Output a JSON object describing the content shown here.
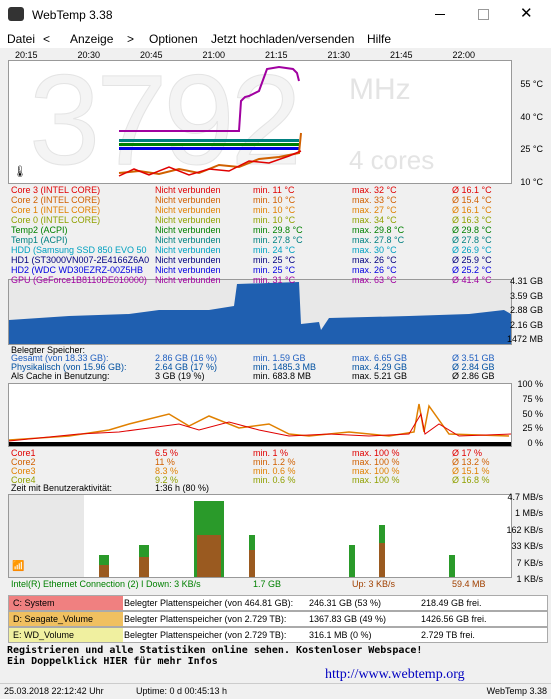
{
  "window": {
    "title": "WebTemp 3.38",
    "menu": [
      "Datei",
      "<",
      "Anzeige",
      ">",
      "Optionen",
      "Jetzt hochladen/versenden",
      "Hilfe"
    ],
    "time_axis": [
      "20:15",
      "20:30",
      "20:45",
      "21:00",
      "21:15",
      "21:30",
      "21:45",
      "22:00"
    ]
  },
  "temperature": {
    "big_value": "3792",
    "unit": "MHz",
    "cores": "4 cores",
    "y_labels": [
      "55 °C",
      "40 °C",
      "25 °C",
      "10 °C"
    ],
    "rows": [
      {
        "name": "Core 3 (INTEL CORE)",
        "status": "Nicht verbunden",
        "min": "min. 11 °C",
        "max": "max. 32 °C",
        "avg": "Ø 16.1 °C",
        "color": "#e00000"
      },
      {
        "name": "Core 2 (INTEL CORE)",
        "status": "Nicht verbunden",
        "min": "min. 10 °C",
        "max": "max. 33 °C",
        "avg": "Ø 15.4 °C",
        "color": "#d06000"
      },
      {
        "name": "Core 1 (INTEL CORE)",
        "status": "Nicht verbunden",
        "min": "min. 10 °C",
        "max": "max. 27 °C",
        "avg": "Ø 16.1 °C",
        "color": "#e08000"
      },
      {
        "name": "Core 0 (INTEL CORE)",
        "status": "Nicht verbunden",
        "min": "min. 10 °C",
        "max": "max. 34 °C",
        "avg": "Ø 16.3 °C",
        "color": "#90a000"
      },
      {
        "name": "Temp2 (ACPI)",
        "status": "Nicht verbunden",
        "min": "min. 29.8 °C",
        "max": "max. 29.8 °C",
        "avg": "Ø 29.8 °C",
        "color": "#008000"
      },
      {
        "name": "Temp1 (ACPI)",
        "status": "Nicht verbunden",
        "min": "min. 27.8 °C",
        "max": "max. 27.8 °C",
        "avg": "Ø 27.8 °C",
        "color": "#008080"
      },
      {
        "name": "HDD (Samsung SSD 850 EVO 50",
        "status": "Nicht verbunden",
        "min": "min. 24 °C",
        "max": "max. 30 °C",
        "avg": "Ø 26.9 °C",
        "color": "#00a0c0"
      },
      {
        "name": "HD1 (ST3000VN007-2E4166Z6A0",
        "status": "Nicht verbunden",
        "min": "min. 25 °C",
        "max": "max. 26 °C",
        "avg": "Ø 25.9 °C",
        "color": "#000080"
      },
      {
        "name": "HD2 (WDC WD30EZRZ-00Z5HB",
        "status": "Nicht verbunden",
        "min": "min. 25 °C",
        "max": "max. 26 °C",
        "avg": "Ø 25.2 °C",
        "color": "#0000e0"
      },
      {
        "name": "GPU (GeForce1B8110DE010000)",
        "status": "Nicht verbunden",
        "min": "min. 31 °C",
        "max": "max. 63 °C",
        "avg": "Ø 41.4 °C",
        "color": "#a000a0"
      }
    ]
  },
  "memory": {
    "y_labels": [
      "4.31 GB",
      "3.59 GB",
      "2.88 GB",
      "2.16 GB",
      "1472 MB"
    ],
    "header": "Belegter Speicher:",
    "rows": [
      {
        "name": "Gesamt (von 18.33 GB):",
        "current": "2.86 GB (16 %)",
        "min": "min. 1.59 GB",
        "max": "max. 6.65 GB",
        "avg": "Ø 3.51 GB",
        "color": "#2060c0"
      },
      {
        "name": "Physikalisch (von 15.96 GB):",
        "current": "2.64 GB (17 %)",
        "min": "min. 1485.3 MB",
        "max": "max. 4.29 GB",
        "avg": "Ø 2.84 GB",
        "color": "#0050a0"
      },
      {
        "name": "Als Cache in Benutzung:",
        "current": "3 GB (19 %)",
        "min": "min. 683.8 MB",
        "max": "max. 5.21 GB",
        "avg": "Ø 2.86 GB",
        "color": "#000000"
      }
    ]
  },
  "cpu": {
    "y_labels": [
      "100 %",
      "75 %",
      "50 %",
      "25 %",
      "0 %"
    ],
    "rows": [
      {
        "name": "Core1",
        "current": "6.5 %",
        "min": "min. 1 %",
        "max": "max. 100 %",
        "avg": "Ø 17 %",
        "color": "#e00000"
      },
      {
        "name": "Core2",
        "current": "11 %",
        "min": "min. 1.2 %",
        "max": "max. 100 %",
        "avg": "Ø 13.2 %",
        "color": "#d06000"
      },
      {
        "name": "Core3",
        "current": "8.3 %",
        "min": "min. 0.6 %",
        "max": "max. 100 %",
        "avg": "Ø 15.1 %",
        "color": "#e08000"
      },
      {
        "name": "Core4",
        "current": "9.2 %",
        "min": "min. 0.6 %",
        "max": "max. 100 %",
        "avg": "Ø 16.8 %",
        "color": "#90a000"
      }
    ],
    "activity_label": "Zeit mit Benutzeraktivität:",
    "activity_value": "1:36 h (80 %)"
  },
  "network": {
    "y_labels": [
      "4.7 MB/s",
      "1 MB/s",
      "162 KB/s",
      "33 KB/s",
      "7 KB/s",
      "1 KB/s"
    ],
    "adapter": "Intel(R) Ethernet Connection (2) I Down: 3 KB/s",
    "down_total": "1.7 GB",
    "up": "Up: 3 KB/s",
    "up_total": "59.4 MB"
  },
  "drives": [
    {
      "name": "C: System",
      "label": "Belegter Plattenspeicher (von 464.81 GB):",
      "used": "246.31 GB (53 %)",
      "free": "218.49 GB frei.",
      "color": "#f08080"
    },
    {
      "name": "D: Seagate_Volume",
      "label": "Belegter Plattenspeicher (von 2.729 TB):",
      "used": "1367.83 GB (49 %)",
      "free": "1426.56 GB frei.",
      "color": "#f0c060"
    },
    {
      "name": "E: WD_Volume",
      "label": "Belegter Plattenspeicher (von 2.729 TB):",
      "used": "316.1 MB (0 %)",
      "free": "2.729 TB frei.",
      "color": "#f0f0a0"
    }
  ],
  "footer": {
    "line1": "Registrieren und alle Statistiken online sehen. Kostenloser Webspace!",
    "line2": "Ein Doppelklick HIER für mehr Infos",
    "url": "http://www.webtemp.org"
  },
  "status": {
    "datetime": "25.03.2018 22:12:42 Uhr",
    "uptime": "Uptime: 0 d 00:45:13 h",
    "version": "WebTemp 3.38"
  }
}
